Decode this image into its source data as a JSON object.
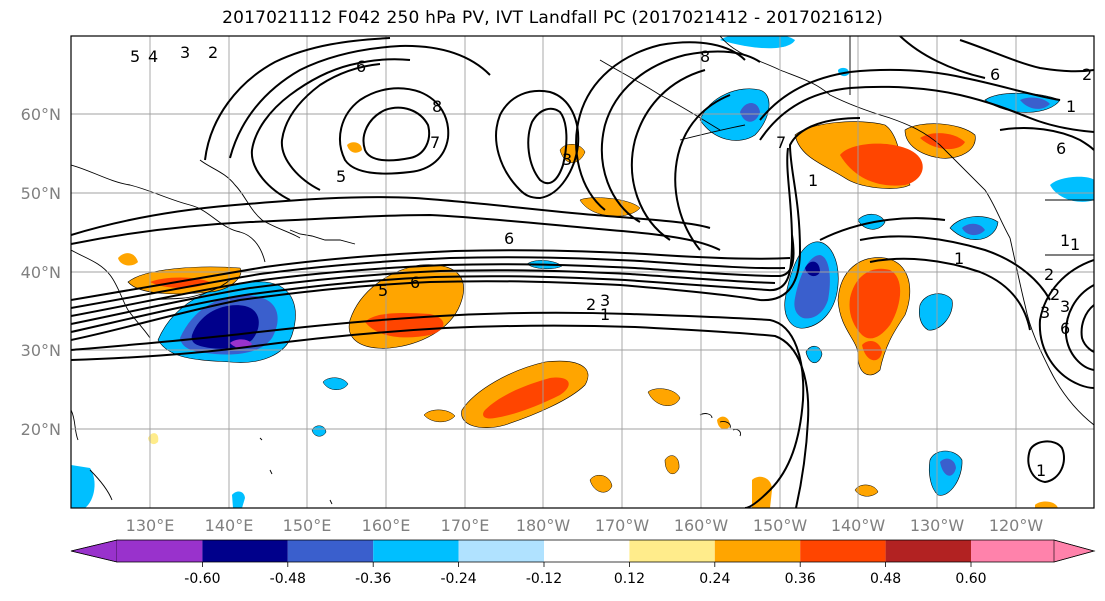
{
  "title": "2017021112 F042 250 hPa PV, IVT Landfall PC (2017021412 - 2017021612)",
  "lat_labels": [
    "60°N",
    "50°N",
    "40°N",
    "30°N",
    "20°N"
  ],
  "lon_labels": [
    "130°E",
    "140°E",
    "150°E",
    "160°E",
    "170°E",
    "180°W",
    "170°W",
    "160°W",
    "150°W",
    "140°W",
    "130°W",
    "120°W"
  ],
  "contour_labels": [
    "5",
    "4",
    "3",
    "2",
    "6",
    "8",
    "7",
    "5",
    "6",
    "3",
    "8",
    "7",
    "1",
    "6",
    "2",
    "3",
    "1",
    "5",
    "6",
    "2",
    "1",
    "1",
    "6",
    "2",
    "3",
    "3",
    "1",
    "6",
    "1",
    "2",
    "1"
  ],
  "colorbar": {
    "colors": [
      "#9932CC",
      "#00008B",
      "#3A5FCD",
      "#00BFFF",
      "#B0E2FF",
      "#FFFFFF",
      "#FFFFFF",
      "#FFEC8B",
      "#FFA500",
      "#FF4500",
      "#B22222",
      "#FF82AB"
    ],
    "tick_labels": [
      "-0.60",
      "-0.48",
      "-0.36",
      "-0.24",
      "-0.12",
      "0.12",
      "0.24",
      "0.36",
      "0.48",
      "0.60"
    ]
  }
}
